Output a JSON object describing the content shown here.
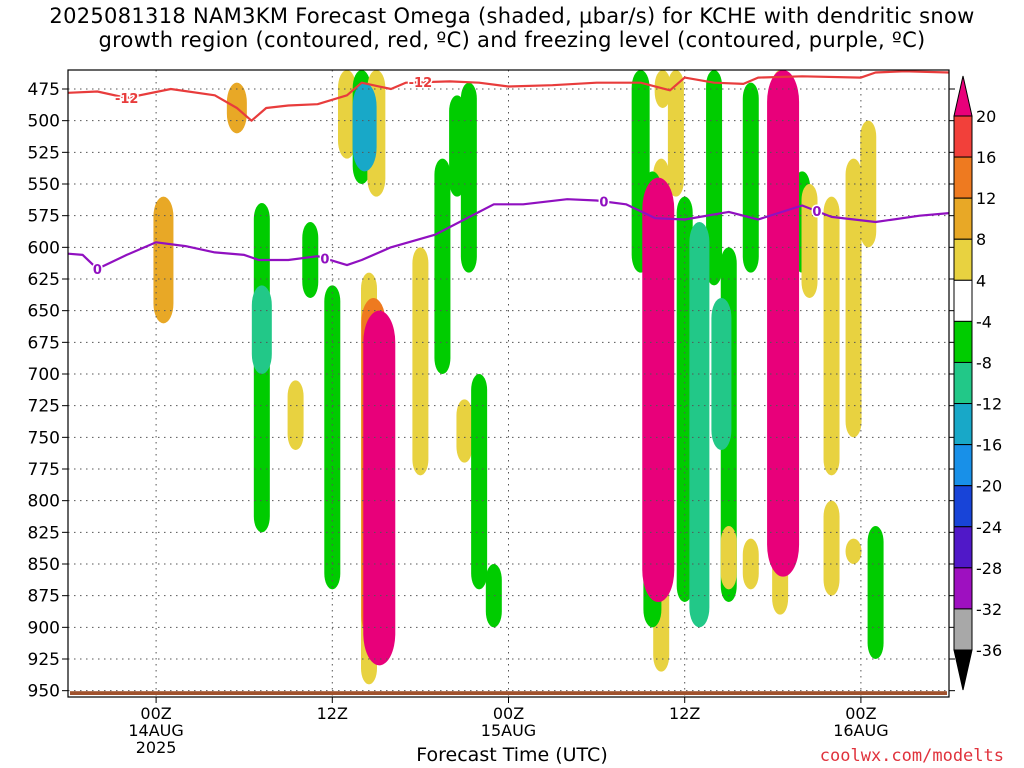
{
  "title": {
    "line1": "2025081318 NAM3KM Forecast Omega (shaded, μbar/s) for KCHE with dendritic snow",
    "line2": "growth region (contoured, red, ºC) and freezing level (contoured, purple, ºC)"
  },
  "xlabel": "Forecast Time (UTC)",
  "credit": "coolwx.com/modelts",
  "chart_data": {
    "type": "heatmap",
    "y_axis": {
      "label": "",
      "ticks": [
        475,
        500,
        525,
        550,
        575,
        600,
        625,
        650,
        675,
        700,
        725,
        750,
        775,
        800,
        825,
        850,
        875,
        900,
        925,
        950
      ],
      "range": [
        460,
        955
      ],
      "inverted": true
    },
    "x_axis": {
      "label": "Forecast Time (UTC)",
      "ticks": [
        {
          "hour": 6,
          "lines": [
            "00Z",
            "14AUG",
            "2025"
          ]
        },
        {
          "hour": 18,
          "lines": [
            "12Z"
          ]
        },
        {
          "hour": 30,
          "lines": [
            "00Z",
            "15AUG"
          ]
        },
        {
          "hour": 42,
          "lines": [
            "12Z"
          ]
        },
        {
          "hour": 54,
          "lines": [
            "00Z",
            "16AUG"
          ]
        }
      ],
      "range": [
        0,
        60
      ]
    },
    "grid": true,
    "colorbar": {
      "ticks": [
        "20",
        "16",
        "12",
        "8",
        "4",
        "-4",
        "-8",
        "-12",
        "-16",
        "-20",
        "-24",
        "-28",
        "-32",
        "-36"
      ],
      "colors": [
        "#e8007a",
        "#f2403a",
        "#ee7a20",
        "#e8a826",
        "#e8d240",
        "#ffffff",
        "#00cc00",
        "#22c888",
        "#18a8c8",
        "#1890e8",
        "#1844d8",
        "#5018c8",
        "#9e10c0",
        "#a8a8a8"
      ]
    },
    "omega_regions": [
      {
        "value": 8,
        "x": 6.5,
        "y": [
          560,
          660
        ]
      },
      {
        "value": 8,
        "x": 11.5,
        "y": [
          470,
          510
        ]
      },
      {
        "value": -4,
        "x": 13.2,
        "y": [
          565,
          825
        ]
      },
      {
        "value": -8,
        "x": 13.2,
        "y": [
          630,
          700
        ]
      },
      {
        "value": 4,
        "x": 15.5,
        "y": [
          705,
          760
        ]
      },
      {
        "value": -4,
        "x": 16.5,
        "y": [
          580,
          640
        ]
      },
      {
        "value": -4,
        "x": 18.0,
        "y": [
          630,
          870
        ]
      },
      {
        "value": 6,
        "x": 19.0,
        "y": [
          460,
          530
        ]
      },
      {
        "value": -6,
        "x": 20.0,
        "y": [
          460,
          550
        ]
      },
      {
        "value": -12,
        "x": 20.2,
        "y": [
          470,
          540
        ]
      },
      {
        "value": 6,
        "x": 21.0,
        "y": [
          460,
          560
        ]
      },
      {
        "value": 4,
        "x": 20.5,
        "y": [
          620,
          945
        ]
      },
      {
        "value": 12,
        "x": 20.8,
        "y": [
          640,
          910
        ]
      },
      {
        "value": 20,
        "x": 21.2,
        "y": [
          650,
          930
        ]
      },
      {
        "value": 4,
        "x": 24.0,
        "y": [
          600,
          780
        ]
      },
      {
        "value": -4,
        "x": 25.5,
        "y": [
          530,
          700
        ]
      },
      {
        "value": -4,
        "x": 26.5,
        "y": [
          480,
          560
        ]
      },
      {
        "value": -4,
        "x": 27.3,
        "y": [
          470,
          620
        ]
      },
      {
        "value": 4,
        "x": 27.0,
        "y": [
          720,
          770
        ]
      },
      {
        "value": -4,
        "x": 28.0,
        "y": [
          700,
          870
        ]
      },
      {
        "value": -4,
        "x": 29.0,
        "y": [
          850,
          900
        ]
      },
      {
        "value": -6,
        "x": 39.0,
        "y": [
          460,
          620
        ]
      },
      {
        "value": 4,
        "x": 40.5,
        "y": [
          460,
          490
        ]
      },
      {
        "value": -6,
        "x": 39.8,
        "y": [
          540,
          900
        ]
      },
      {
        "value": 20,
        "x": 40.2,
        "y": [
          545,
          880
        ]
      },
      {
        "value": 4,
        "x": 40.4,
        "y": [
          530,
          935
        ]
      },
      {
        "value": 4,
        "x": 41.4,
        "y": [
          460,
          560
        ]
      },
      {
        "value": -4,
        "x": 42.0,
        "y": [
          560,
          880
        ]
      },
      {
        "value": -8,
        "x": 43.0,
        "y": [
          580,
          900
        ]
      },
      {
        "value": -4,
        "x": 44.0,
        "y": [
          460,
          630
        ]
      },
      {
        "value": -4,
        "x": 45.0,
        "y": [
          600,
          880
        ]
      },
      {
        "value": -8,
        "x": 44.5,
        "y": [
          640,
          760
        ]
      },
      {
        "value": 4,
        "x": 45.0,
        "y": [
          820,
          870
        ]
      },
      {
        "value": -4,
        "x": 46.5,
        "y": [
          470,
          620
        ]
      },
      {
        "value": 4,
        "x": 46.5,
        "y": [
          830,
          870
        ]
      },
      {
        "value": 20,
        "x": 48.7,
        "y": [
          460,
          860
        ]
      },
      {
        "value": 4,
        "x": 48.5,
        "y": [
          460,
          890
        ]
      },
      {
        "value": -4,
        "x": 50.0,
        "y": [
          540,
          620
        ]
      },
      {
        "value": 4,
        "x": 50.5,
        "y": [
          550,
          640
        ]
      },
      {
        "value": 4,
        "x": 52.0,
        "y": [
          560,
          780
        ]
      },
      {
        "value": 4,
        "x": 53.5,
        "y": [
          530,
          750
        ]
      },
      {
        "value": 4,
        "x": 54.5,
        "y": [
          500,
          600
        ]
      },
      {
        "value": 4,
        "x": 52.0,
        "y": [
          800,
          875
        ]
      },
      {
        "value": -4,
        "x": 55.0,
        "y": [
          820,
          925
        ]
      },
      {
        "value": 4,
        "x": 53.5,
        "y": [
          830,
          850
        ]
      }
    ],
    "dendritic_contour": {
      "label": "-12",
      "color": "#e83c3c",
      "points": [
        [
          0,
          478
        ],
        [
          2,
          477
        ],
        [
          4,
          482
        ],
        [
          7,
          475
        ],
        [
          10,
          480
        ],
        [
          11.5,
          490
        ],
        [
          12.5,
          500
        ],
        [
          13.5,
          490
        ],
        [
          15,
          488
        ],
        [
          17,
          487
        ],
        [
          19,
          480
        ],
        [
          20,
          470
        ],
        [
          22,
          475
        ],
        [
          23,
          470
        ],
        [
          26,
          469
        ],
        [
          28,
          470
        ],
        [
          30,
          473
        ],
        [
          33,
          472
        ],
        [
          36,
          470
        ],
        [
          39,
          470
        ],
        [
          41,
          476
        ],
        [
          42,
          466
        ],
        [
          44,
          470
        ],
        [
          46,
          471
        ],
        [
          47,
          466
        ],
        [
          50,
          465
        ],
        [
          54,
          466
        ],
        [
          55,
          462
        ],
        [
          57,
          461
        ],
        [
          60,
          462
        ]
      ]
    },
    "freezing_contour": {
      "label": "0",
      "color": "#9010c0",
      "points": [
        [
          0,
          605
        ],
        [
          1,
          606
        ],
        [
          2,
          617
        ],
        [
          4,
          606
        ],
        [
          6,
          596
        ],
        [
          8,
          599
        ],
        [
          10,
          604
        ],
        [
          12,
          606
        ],
        [
          13,
          610
        ],
        [
          15,
          610
        ],
        [
          17,
          607
        ],
        [
          19,
          614
        ],
        [
          20,
          610
        ],
        [
          22,
          600
        ],
        [
          25,
          590
        ],
        [
          27,
          578
        ],
        [
          29,
          566
        ],
        [
          31,
          566
        ],
        [
          34,
          562
        ],
        [
          36,
          563
        ],
        [
          38,
          566
        ],
        [
          40,
          577
        ],
        [
          42,
          578
        ],
        [
          45,
          572
        ],
        [
          47,
          578
        ],
        [
          50,
          567
        ],
        [
          52,
          576
        ],
        [
          55,
          580
        ],
        [
          58,
          575
        ],
        [
          60,
          573
        ]
      ]
    },
    "terrain": {
      "color": "#a0522d",
      "pressure": 952
    }
  }
}
